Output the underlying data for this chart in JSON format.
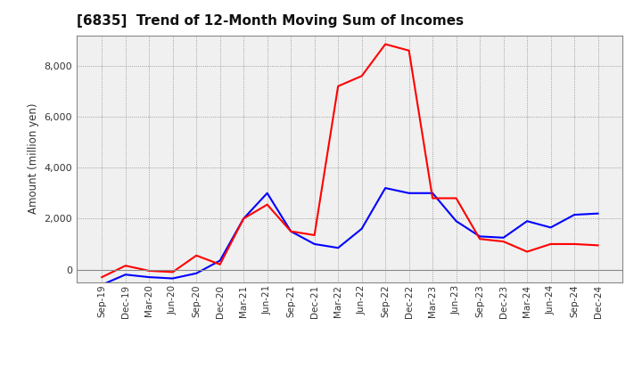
{
  "title": "[6835]  Trend of 12-Month Moving Sum of Incomes",
  "ylabel": "Amount (million yen)",
  "ylim": [
    -500,
    9200
  ],
  "yticks": [
    0,
    2000,
    4000,
    6000,
    8000
  ],
  "background_color": "#ffffff",
  "plot_bg_color": "#f0f0f0",
  "grid_color": "#888888",
  "labels": [
    "Sep-19",
    "Dec-19",
    "Mar-20",
    "Jun-20",
    "Sep-20",
    "Dec-20",
    "Mar-21",
    "Jun-21",
    "Sep-21",
    "Dec-21",
    "Mar-22",
    "Jun-22",
    "Sep-22",
    "Dec-22",
    "Mar-23",
    "Jun-23",
    "Sep-23",
    "Dec-23",
    "Mar-24",
    "Jun-24",
    "Sep-24",
    "Dec-24"
  ],
  "ordinary_income": [
    -600,
    -200,
    -300,
    -350,
    -150,
    350,
    2000,
    3000,
    1500,
    1000,
    850,
    1600,
    3200,
    3000,
    3000,
    1900,
    1300,
    1250,
    1900,
    1650,
    2150,
    2200
  ],
  "net_income": [
    -300,
    150,
    -50,
    -100,
    550,
    200,
    2000,
    2550,
    1500,
    1350,
    7200,
    7600,
    8850,
    8600,
    2800,
    2800,
    1200,
    1100,
    700,
    1000,
    1000,
    950
  ],
  "ordinary_color": "#0000ff",
  "net_color": "#ff0000",
  "line_width": 1.5,
  "zero_line_color": "#888888",
  "spine_color": "#888888"
}
